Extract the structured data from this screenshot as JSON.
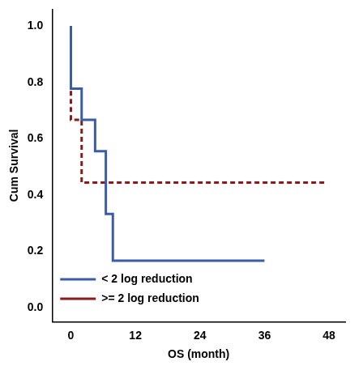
{
  "chart_data": {
    "type": "step",
    "x_label": "OS (month)",
    "y_label": "Cum Survival",
    "series": [
      {
        "name": "< 2 log reduction",
        "color": "#3b5da8",
        "line_style": "solid",
        "marker": "none",
        "x": [
          0,
          2,
          4.5,
          6.5,
          7.8,
          14.5,
          36
        ],
        "values": [
          1.0,
          0.778,
          0.667,
          0.556,
          0.333,
          0.167,
          0.167
        ]
      },
      {
        "name": ">= 2 log reduction",
        "color": "#8b1a1a",
        "line_style": "dashed",
        "marker": "none",
        "x": [
          0,
          2,
          13.8,
          47.5
        ],
        "values": [
          1.0,
          0.667,
          0.444,
          0.444
        ]
      }
    ],
    "xlim": [
      -3.5,
      51
    ],
    "xticks": [
      0,
      12,
      24,
      36,
      48
    ],
    "ylim": [
      -0.05,
      1.06
    ],
    "yticks": [
      {
        "value": 0,
        "label": "0.0"
      },
      0.2,
      0.4,
      0.6,
      0.8,
      {
        "value": 1,
        "label": "1.0"
      }
    ],
    "grid": false,
    "legend": "upper right"
  }
}
